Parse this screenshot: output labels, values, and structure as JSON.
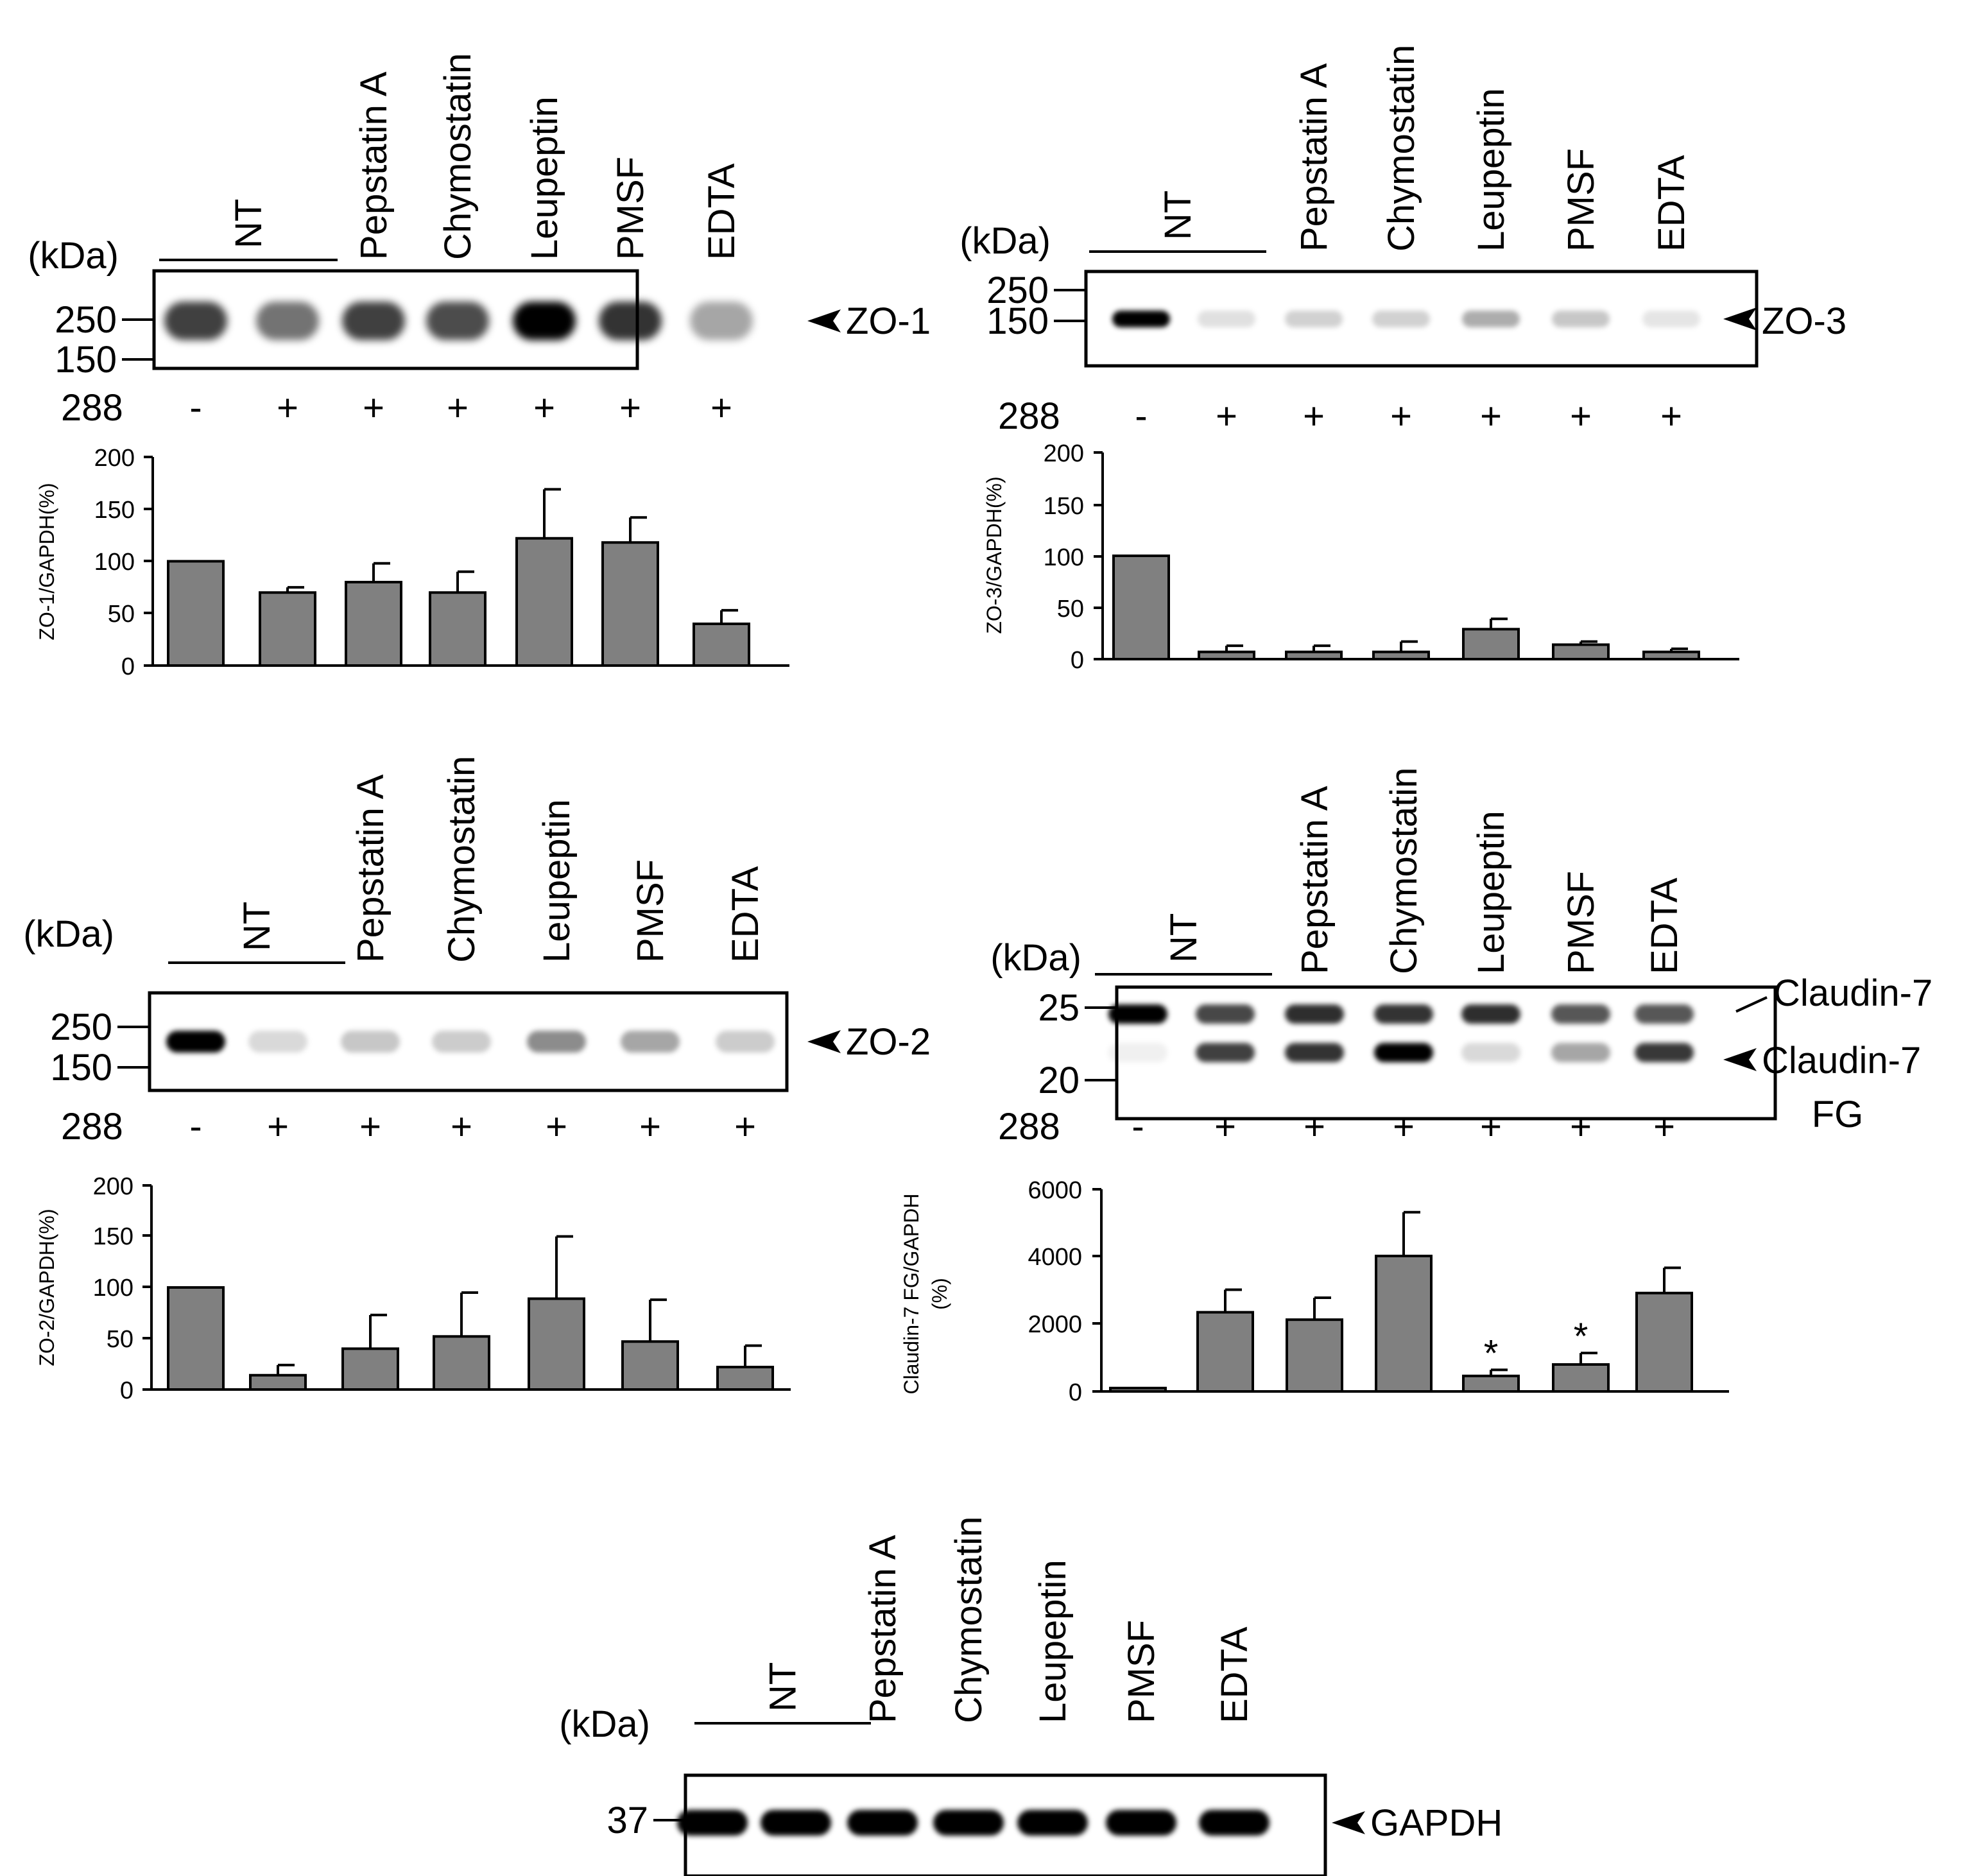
{
  "lane_labels": [
    "Pepstatin A",
    "Chymostatin",
    "Leupeptin",
    "PMSF",
    "EDTA"
  ],
  "nt_label": "NT",
  "kda_label": "(kDa)",
  "treatment_label": "288",
  "treatment_signs": [
    "-",
    "+",
    "+",
    "+",
    "+",
    "+",
    "+"
  ],
  "panels": [
    {
      "id": "zo1",
      "protein": "ZO-1",
      "markers": [
        "250",
        "150"
      ],
      "bands": [
        {
          "label": "ZO-1",
          "relative_intensity": [
            0.75,
            0.55,
            0.75,
            0.7,
            1.0,
            0.8,
            0.35
          ]
        }
      ],
      "chart": {
        "type": "bar",
        "ylabel": "ZO-1/GAPDH(%)",
        "ylim": [
          0,
          200
        ],
        "yticks": [
          "0",
          "50",
          "100",
          "150",
          "200"
        ],
        "values": [
          100,
          70,
          80,
          70,
          122,
          118,
          40
        ],
        "errors": [
          0,
          5,
          18,
          20,
          47,
          24,
          13
        ],
        "annotations": [
          "",
          "",
          "",
          "",
          "",
          "",
          ""
        ]
      }
    },
    {
      "id": "zo3",
      "protein": "ZO-3",
      "markers": [
        "250",
        "150"
      ],
      "bands": [
        {
          "label": "ZO-3",
          "relative_intensity": [
            1.0,
            0.12,
            0.18,
            0.18,
            0.32,
            0.22,
            0.1
          ]
        }
      ],
      "chart": {
        "type": "bar",
        "ylabel": "ZO-3/GAPDH(%)",
        "ylim": [
          0,
          200
        ],
        "yticks": [
          "0",
          "50",
          "100",
          "150",
          "200"
        ],
        "values": [
          100,
          7,
          7,
          7,
          29,
          14,
          7
        ],
        "errors": [
          0,
          6,
          6,
          10,
          10,
          3,
          3
        ],
        "annotations": [
          "",
          "",
          "",
          "",
          "",
          "",
          ""
        ]
      }
    },
    {
      "id": "zo2",
      "protein": "ZO-2",
      "markers": [
        "250",
        "150"
      ],
      "bands": [
        {
          "label": "ZO-2",
          "relative_intensity": [
            1.0,
            0.15,
            0.22,
            0.2,
            0.45,
            0.35,
            0.2
          ]
        }
      ],
      "chart": {
        "type": "bar",
        "ylabel": "ZO-2/GAPDH(%)",
        "ylim": [
          0,
          200
        ],
        "yticks": [
          "0",
          "50",
          "100",
          "150",
          "200"
        ],
        "values": [
          100,
          14,
          40,
          52,
          89,
          47,
          22
        ],
        "errors": [
          0,
          10,
          33,
          43,
          61,
          41,
          21
        ],
        "annotations": [
          "",
          "",
          "",
          "",
          "",
          "",
          ""
        ]
      }
    },
    {
      "id": "cldn7",
      "protein": "Claudin-7",
      "markers": [
        "25",
        "20"
      ],
      "bands": [
        {
          "label": "Claudin-7",
          "relative_intensity": [
            1.0,
            0.72,
            0.82,
            0.8,
            0.82,
            0.66,
            0.66
          ]
        },
        {
          "label": "Claudin-7",
          "sublabel": "FG",
          "relative_intensity": [
            0.06,
            0.75,
            0.8,
            1.0,
            0.15,
            0.35,
            0.78
          ]
        }
      ],
      "chart": {
        "type": "bar",
        "ylabel": "Claudin-7 FG/GAPDH",
        "ylabel2": "(%)",
        "ylim": [
          0,
          6000
        ],
        "yticks": [
          "0",
          "2000",
          "4000",
          "6000"
        ],
        "values": [
          100,
          2350,
          2130,
          4020,
          460,
          800,
          2920
        ],
        "errors": [
          0,
          670,
          650,
          1300,
          180,
          340,
          750
        ],
        "annotations": [
          "",
          "",
          "",
          "",
          "*",
          "*",
          ""
        ]
      }
    },
    {
      "id": "gapdh",
      "protein": "GAPDH",
      "markers": [
        "37"
      ],
      "bands": [
        {
          "label": "GAPDH",
          "relative_intensity": [
            1.0,
            1.0,
            1.0,
            1.0,
            1.0,
            1.0,
            1.0
          ]
        }
      ]
    }
  ],
  "colors": {
    "bar_fill": "#808080",
    "band": "#000000",
    "line": "#000000"
  },
  "chart_data": [
    {
      "type": "bar",
      "title": "",
      "categories": [
        "-",
        "+",
        "+",
        "+",
        "+",
        "+",
        "+"
      ],
      "xlabel": "",
      "ylabel": "ZO-1/GAPDH(%)",
      "ylim": [
        0,
        200
      ],
      "series": [
        {
          "values": [
            100,
            70,
            80,
            70,
            122,
            118,
            40
          ]
        }
      ],
      "error_bars": [
        0,
        5,
        18,
        20,
        47,
        24,
        13
      ],
      "grid": false
    },
    {
      "type": "bar",
      "title": "",
      "categories": [
        "-",
        "+",
        "+",
        "+",
        "+",
        "+",
        "+"
      ],
      "xlabel": "",
      "ylabel": "ZO-3/GAPDH(%)",
      "ylim": [
        0,
        200
      ],
      "series": [
        {
          "values": [
            100,
            7,
            7,
            7,
            29,
            14,
            7
          ]
        }
      ],
      "error_bars": [
        0,
        6,
        6,
        10,
        10,
        3,
        3
      ],
      "grid": false
    },
    {
      "type": "bar",
      "title": "",
      "categories": [
        "-",
        "+",
        "+",
        "+",
        "+",
        "+",
        "+"
      ],
      "xlabel": "",
      "ylabel": "ZO-2/GAPDH(%)",
      "ylim": [
        0,
        200
      ],
      "series": [
        {
          "values": [
            100,
            14,
            40,
            52,
            89,
            47,
            22
          ]
        }
      ],
      "error_bars": [
        0,
        10,
        33,
        43,
        61,
        41,
        21
      ],
      "grid": false
    },
    {
      "type": "bar",
      "title": "",
      "categories": [
        "-",
        "+",
        "+",
        "+",
        "+",
        "+",
        "+"
      ],
      "xlabel": "",
      "ylabel": "Claudin-7 FG/GAPDH (%)",
      "ylim": [
        0,
        6000
      ],
      "series": [
        {
          "values": [
            100,
            2350,
            2130,
            4020,
            460,
            800,
            2920
          ]
        }
      ],
      "error_bars": [
        0,
        670,
        650,
        1300,
        180,
        340,
        750
      ],
      "annotations": [
        "",
        "",
        "",
        "",
        "*",
        "*",
        ""
      ],
      "grid": false
    }
  ]
}
